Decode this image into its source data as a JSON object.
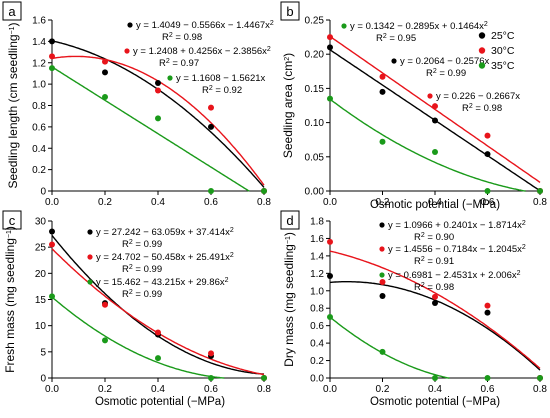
{
  "figure": {
    "xlabel": "Osmotic potential (−MPa)",
    "xticks": [
      "0.0",
      "0.2",
      "0.4",
      "0.6",
      "0.8"
    ],
    "colors": {
      "25°C": "#000000",
      "30°C": "#e8141b",
      "35°C": "#1a9a1a"
    },
    "icons": {
      "legend_marker": "dot-icon"
    }
  },
  "chart_data": [
    {
      "panel": "a",
      "type": "scatter",
      "ylabel_main": "Seedling length (cm seedling",
      "ylabel_sup": "−1",
      "ylabel_close": ")",
      "xlim": [
        0,
        0.8
      ],
      "ylim": [
        0,
        1.6
      ],
      "yticks": [
        "0",
        "0.2",
        "0.4",
        "0.6",
        "0.8",
        "1.0",
        "1.2",
        "1.4",
        "1.6"
      ],
      "x": [
        0,
        0.2,
        0.4,
        0.6,
        0.8
      ],
      "series": [
        {
          "key": "25°C",
          "values": [
            1.4,
            1.11,
            1.01,
            0.6,
            0.0
          ],
          "fit": [
            1.4049,
            -0.5566,
            -1.4467
          ]
        },
        {
          "key": "30°C",
          "values": [
            1.26,
            1.21,
            0.94,
            0.78,
            0.0
          ],
          "fit": [
            1.2408,
            0.4256,
            -2.3856
          ]
        },
        {
          "key": "35°C",
          "values": [
            1.15,
            0.88,
            0.68,
            0.0,
            0.0
          ],
          "fit": [
            1.1608,
            -1.5621,
            0
          ]
        }
      ],
      "equations": [
        {
          "key": "25°C",
          "eq_main": "y = 1.4049 − 0.5566x − 1.4467x",
          "eq_sup": "2",
          "r2_main": "R",
          "r2_sup": "2",
          "r2_rest": " = 0.98"
        },
        {
          "key": "30°C",
          "eq_main": "y = 1.2408 + 0.4256x − 2.3856x",
          "eq_sup": "2",
          "r2_main": "R",
          "r2_sup": "2",
          "r2_rest": " = 0.97"
        },
        {
          "key": "35°C",
          "eq_main": "y = 1.1608 − 1.5621x",
          "eq_sup": "",
          "r2_main": "R",
          "r2_sup": "2",
          "r2_rest": " = 0.92"
        }
      ]
    },
    {
      "panel": "b",
      "type": "scatter",
      "ylabel_main": "Seedling area (cm",
      "ylabel_sup": "2",
      "ylabel_close": ")",
      "xlim": [
        0,
        0.8
      ],
      "ylim": [
        0,
        0.25
      ],
      "yticks": [
        "0.00",
        "0.05",
        "0.10",
        "0.15",
        "0.20",
        "0.25"
      ],
      "x": [
        0,
        0.2,
        0.4,
        0.6,
        0.8
      ],
      "legend": [
        "25°C",
        "30°C",
        "35°C"
      ],
      "series": [
        {
          "key": "25°C",
          "values": [
            0.21,
            0.145,
            0.103,
            0.054,
            0.0
          ],
          "fit": [
            0.2064,
            -0.2576,
            0
          ]
        },
        {
          "key": "30°C",
          "values": [
            0.225,
            0.167,
            0.124,
            0.081,
            0.0
          ],
          "fit": [
            0.226,
            -0.2667,
            0
          ]
        },
        {
          "key": "35°C",
          "values": [
            0.135,
            0.072,
            0.057,
            0.0,
            0.0
          ],
          "fit": [
            0.1342,
            -0.2895,
            0.1464
          ]
        }
      ],
      "equations": [
        {
          "key": "35°C",
          "eq_main": "y = 0.1342 − 0.2895x + 0.1464x",
          "eq_sup": "2",
          "r2_main": "R",
          "r2_sup": "2",
          "r2_rest": " = 0.95"
        },
        {
          "key": "25°C",
          "eq_main": "y = 0.2064 − 0.2576x",
          "eq_sup": "",
          "r2_main": "R",
          "r2_sup": "2",
          "r2_rest": " = 0.99"
        },
        {
          "key": "30°C",
          "eq_main": "y = 0.226 − 0.2667x",
          "eq_sup": "",
          "r2_main": "R",
          "r2_sup": "2",
          "r2_rest": " = 0.98"
        }
      ]
    },
    {
      "panel": "c",
      "type": "scatter",
      "ylabel_main": "Fresh mass (mg seedling",
      "ylabel_sup": "−1",
      "ylabel_close": ")",
      "xlim": [
        0,
        0.8
      ],
      "ylim": [
        0,
        30
      ],
      "yticks": [
        "0",
        "5",
        "10",
        "15",
        "20",
        "25",
        "30"
      ],
      "x": [
        0,
        0.2,
        0.4,
        0.6,
        0.8
      ],
      "series": [
        {
          "key": "25°C",
          "values": [
            28.0,
            14.3,
            8.3,
            4.2,
            0.0
          ],
          "fit": [
            27.242,
            -63.059,
            37.414
          ]
        },
        {
          "key": "30°C",
          "values": [
            25.5,
            14.0,
            8.7,
            4.7,
            0.0
          ],
          "fit": [
            24.702,
            -50.458,
            25.491
          ]
        },
        {
          "key": "35°C",
          "values": [
            15.6,
            7.2,
            3.8,
            0.0,
            0.0
          ],
          "fit": [
            15.462,
            -43.215,
            29.86
          ]
        }
      ],
      "equations": [
        {
          "key": "25°C",
          "eq_main": "y = 27.242 − 63.059x + 37.414x",
          "eq_sup": "2",
          "r2_main": "R",
          "r2_sup": "2",
          "r2_rest": " = 0.99"
        },
        {
          "key": "30°C",
          "eq_main": "y = 24.702 − 50.458x + 25.491x",
          "eq_sup": "2",
          "r2_main": "R",
          "r2_sup": "2",
          "r2_rest": " = 0.99"
        },
        {
          "key": "35°C",
          "eq_main": "y = 15.462 − 43.215x + 29.86x",
          "eq_sup": "2",
          "r2_main": "R",
          "r2_sup": "2",
          "r2_rest": " = 0.99"
        }
      ]
    },
    {
      "panel": "d",
      "type": "scatter",
      "ylabel_main": "Dry mass (mg seedling",
      "ylabel_sup": "−1",
      "ylabel_close": ")",
      "xlim": [
        0,
        0.8
      ],
      "ylim": [
        0,
        1.8
      ],
      "yticks": [
        "0.0",
        "0.2",
        "0.4",
        "0.6",
        "0.8",
        "1.0",
        "1.2",
        "1.4",
        "1.6",
        "1.8"
      ],
      "x": [
        0,
        0.2,
        0.4,
        0.6,
        0.8
      ],
      "series": [
        {
          "key": "25°C",
          "values": [
            1.17,
            0.94,
            0.86,
            0.75,
            0.0
          ],
          "fit": [
            1.0966,
            0.2401,
            -1.8714
          ]
        },
        {
          "key": "30°C",
          "values": [
            1.56,
            1.1,
            0.93,
            0.83,
            0.0
          ],
          "fit": [
            1.4556,
            -0.7184,
            -1.2045
          ]
        },
        {
          "key": "35°C",
          "values": [
            0.7,
            0.3,
            0.0,
            0.0,
            0.0
          ],
          "fit": [
            0.6981,
            -2.4531,
            2.006
          ]
        }
      ],
      "equations": [
        {
          "key": "25°C",
          "eq_main": "y = 1.0966 + 0.2401x − 1.8714x",
          "eq_sup": "2",
          "r2_main": "R",
          "r2_sup": "2",
          "r2_rest": " = 0.90"
        },
        {
          "key": "30°C",
          "eq_main": "y = 1.4556 − 0.7184x − 1.2045x",
          "eq_sup": "2",
          "r2_main": "R",
          "r2_sup": "2",
          "r2_rest": " = 0.91"
        },
        {
          "key": "35°C",
          "eq_main": "y = 0.6981 − 2.4531x + 2.006x",
          "eq_sup": "2",
          "r2_main": "R",
          "r2_sup": "2",
          "r2_rest": " = 0.98"
        }
      ]
    }
  ]
}
